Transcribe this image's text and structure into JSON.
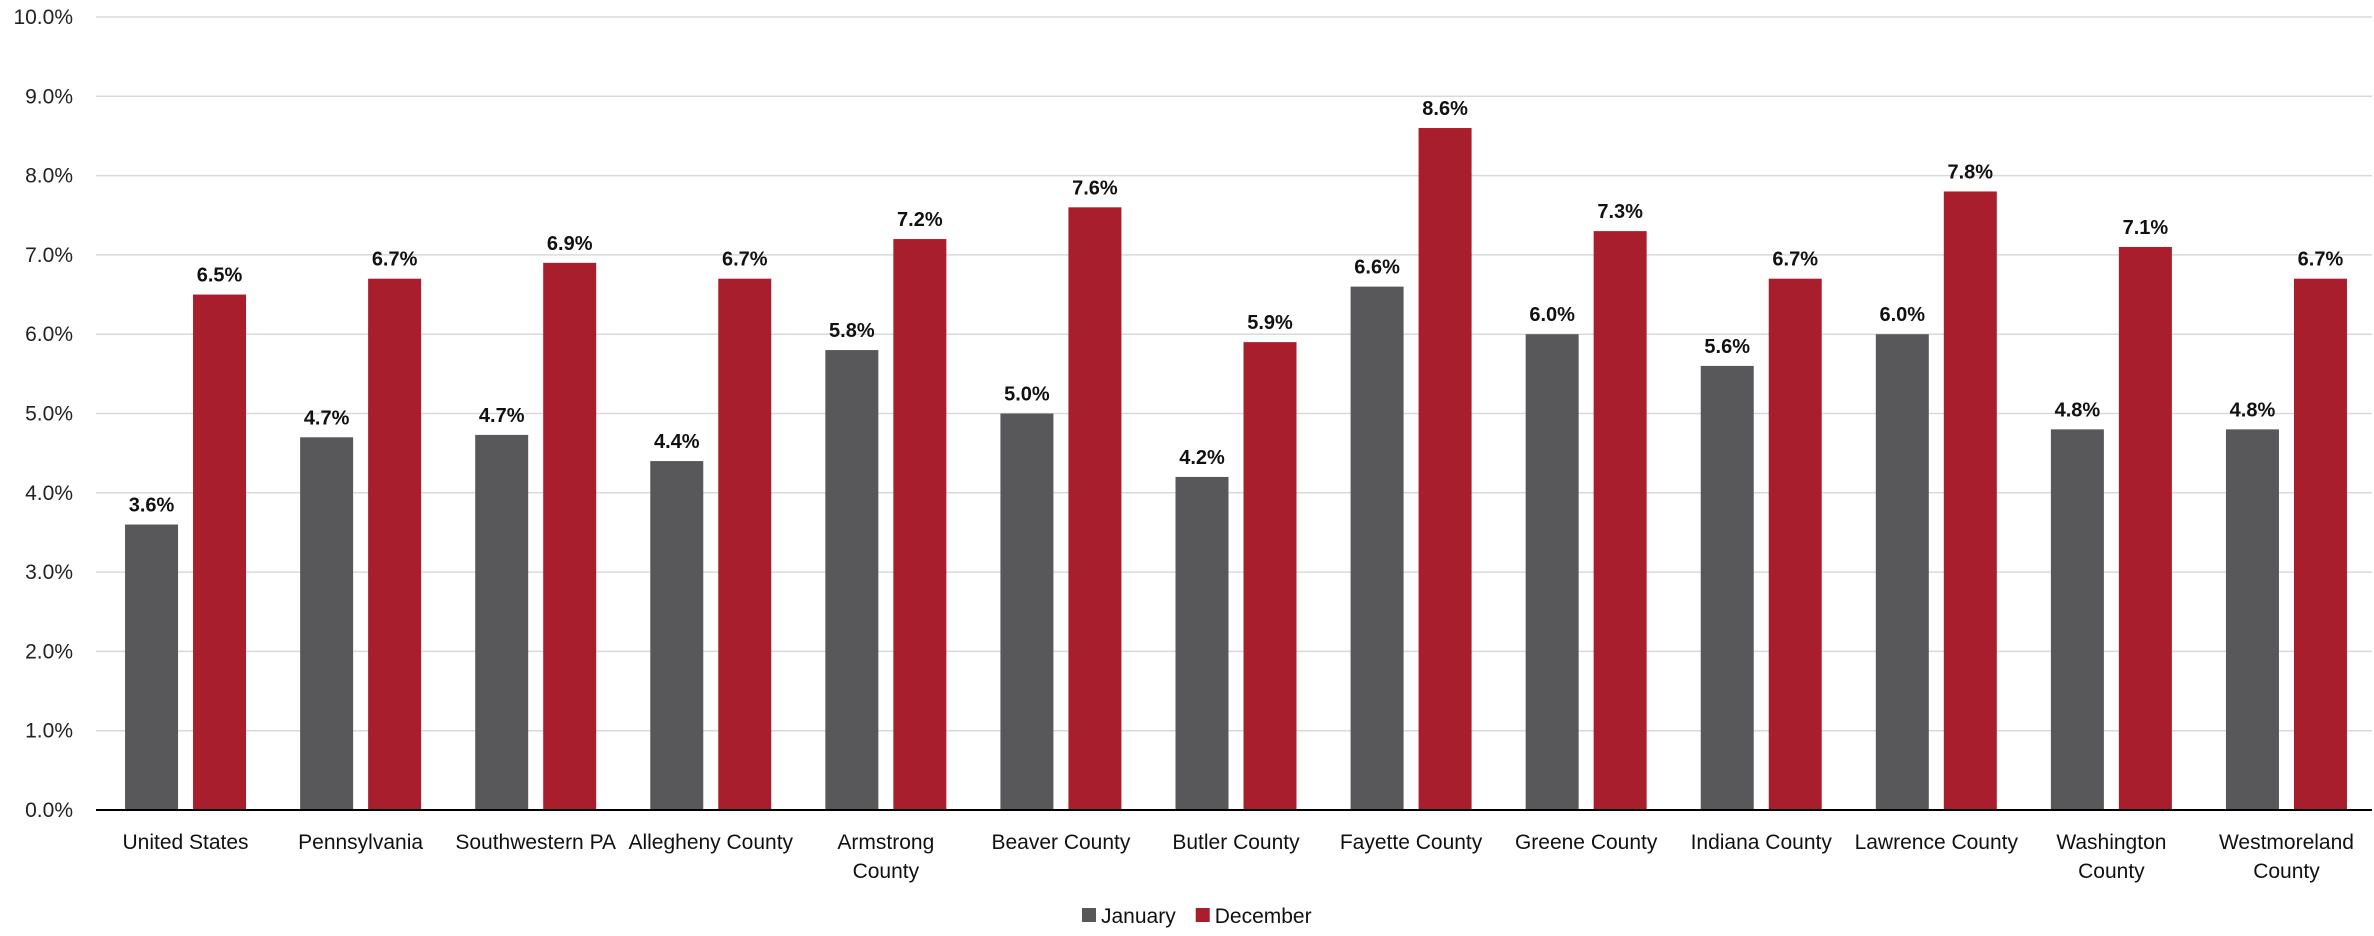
{
  "chart_data": {
    "type": "bar",
    "title": "",
    "xlabel": "",
    "ylabel": "",
    "ylim": [
      0,
      10
    ],
    "yticks": [
      "0.0%",
      "1.0%",
      "2.0%",
      "3.0%",
      "4.0%",
      "5.0%",
      "6.0%",
      "7.0%",
      "8.0%",
      "9.0%",
      "10.0%"
    ],
    "grid": true,
    "legend_position": "bottom",
    "categories": [
      [
        "United States"
      ],
      [
        "Pennsylvania"
      ],
      [
        "Southwestern PA"
      ],
      [
        "Allegheny County"
      ],
      [
        "Armstrong",
        "County"
      ],
      [
        "Beaver County"
      ],
      [
        "Butler County"
      ],
      [
        "Fayette County"
      ],
      [
        "Greene County"
      ],
      [
        "Indiana County"
      ],
      [
        "Lawrence County"
      ],
      [
        "Washington",
        "County"
      ],
      [
        "Westmoreland",
        "County"
      ]
    ],
    "series": [
      {
        "name": "January",
        "color": "#58585b",
        "values": [
          3.6,
          4.7,
          4.73,
          4.4,
          5.8,
          5.0,
          4.2,
          6.6,
          6.0,
          5.6,
          6.0,
          4.8,
          4.8
        ],
        "labels": [
          "3.6%",
          "4.7%",
          "4.7%",
          "4.4%",
          "5.8%",
          "5.0%",
          "4.2%",
          "6.6%",
          "6.0%",
          "5.6%",
          "6.0%",
          "4.8%",
          "4.8%"
        ]
      },
      {
        "name": "December",
        "color": "#a91e2d",
        "values": [
          6.5,
          6.7,
          6.9,
          6.7,
          7.2,
          7.6,
          5.9,
          8.6,
          7.3,
          6.7,
          7.8,
          7.1,
          6.7
        ],
        "labels": [
          "6.5%",
          "6.7%",
          "6.9%",
          "6.7%",
          "7.2%",
          "7.6%",
          "5.9%",
          "8.6%",
          "7.3%",
          "6.7%",
          "7.8%",
          "7.1%",
          "6.7%"
        ]
      }
    ]
  },
  "colors": {
    "grid": "#d9d9d9",
    "axis": "#000000",
    "text": "#111111"
  }
}
